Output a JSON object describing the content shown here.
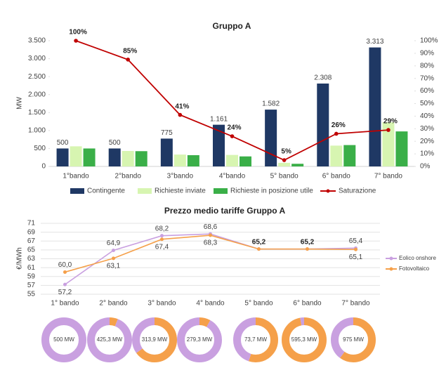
{
  "chart_data": [
    {
      "type": "bar",
      "title": "Gruppo A",
      "ylabel": "MW",
      "categories": [
        "1°bando",
        "2°bando",
        "3°bando",
        "4°bando",
        "5° bando",
        "6° bando",
        "7° bando"
      ],
      "series": [
        {
          "name": "Contingente",
          "color": "#1f3864",
          "values": [
            500,
            500,
            775,
            1161,
            1582,
            2308,
            3313
          ],
          "value_labels": [
            "500",
            "500",
            "775",
            "1.161",
            "1.582",
            "2.308",
            "3.313"
          ]
        },
        {
          "name": "Richieste inviate",
          "color": "#d7f5b1",
          "values": [
            560,
            430,
            330,
            320,
            100,
            580,
            1230
          ]
        },
        {
          "name": "Richieste in posizione utile",
          "color": "#3aaf48",
          "values": [
            500,
            425,
            314,
            279,
            74,
            595,
            975
          ]
        },
        {
          "name": "Saturazione",
          "color": "#c00000",
          "type": "line",
          "axis": "y2",
          "values": [
            100,
            85,
            41,
            24,
            5,
            26,
            29
          ],
          "value_labels": [
            "100%",
            "85%",
            "41%",
            "24%",
            "5%",
            "26%",
            "29%"
          ]
        }
      ],
      "ylim": [
        0,
        3500
      ],
      "yticks": [
        0,
        500,
        {
          "value": 1000,
          "label": "1.000"
        },
        {
          "value": 1500,
          "label": "1.500"
        },
        {
          "value": 2000,
          "label": "2.000"
        },
        {
          "value": 2500,
          "label": "2.500"
        },
        {
          "value": 3000,
          "label": "3.000"
        },
        {
          "value": 3500,
          "label": "3.500"
        }
      ],
      "y2lim": [
        0,
        100
      ],
      "y2ticks": [
        {
          "value": 0,
          "label": "0%"
        },
        {
          "value": 10,
          "label": "10%"
        },
        {
          "value": 20,
          "label": "20%"
        },
        {
          "value": 30,
          "label": "30%"
        },
        {
          "value": 40,
          "label": "40%"
        },
        {
          "value": 50,
          "label": "50%"
        },
        {
          "value": 60,
          "label": "60%"
        },
        {
          "value": 70,
          "label": "70%"
        },
        {
          "value": 80,
          "label": "80%"
        },
        {
          "value": 90,
          "label": "90%"
        },
        {
          "value": 100,
          "label": "100%"
        }
      ],
      "grid": false,
      "legend": "bottom"
    },
    {
      "type": "line",
      "title": "Prezzo medio tariffe Gruppo A",
      "ylabel": "€/MWh",
      "categories": [
        "1° bando",
        "2° bando",
        "3° bando",
        "4° bando",
        "5° bando",
        "6° bando",
        "7° bando"
      ],
      "series": [
        {
          "name": "Eolico onshore",
          "color": "#c9a0e0",
          "values": [
            57.2,
            64.9,
            68.2,
            68.6,
            65.2,
            65.2,
            65.4
          ],
          "value_labels": [
            "57,2",
            "64,9",
            "68,2",
            "68,6",
            "65,2",
            "65,2",
            "65,4"
          ]
        },
        {
          "name": "Fotovoltaico",
          "color": "#f5a04a",
          "values": [
            60.0,
            63.1,
            67.4,
            68.3,
            65.2,
            65.2,
            65.1
          ],
          "value_labels": [
            "60,0",
            "63,1",
            "67,4",
            "68,3",
            null,
            null,
            "65,1"
          ]
        }
      ],
      "ylim": [
        55,
        71
      ],
      "yticks": [
        55,
        57,
        59,
        61,
        63,
        65,
        67,
        69,
        71
      ],
      "grid": true,
      "legend": "right"
    },
    {
      "type": "pie",
      "center_label": "500 MW",
      "values": [
        0,
        100
      ],
      "colors": [
        "#f5a04a",
        "#c9a0e0"
      ]
    },
    {
      "type": "pie",
      "center_label": "425,3 MW",
      "values": [
        6,
        94
      ],
      "colors": [
        "#f5a04a",
        "#c9a0e0"
      ]
    },
    {
      "type": "pie",
      "center_label": "313,9 MW",
      "values": [
        65,
        35
      ],
      "colors": [
        "#f5a04a",
        "#c9a0e0"
      ]
    },
    {
      "type": "pie",
      "center_label": "279,3 MW",
      "values": [
        8,
        92
      ],
      "colors": [
        "#f5a04a",
        "#c9a0e0"
      ]
    },
    {
      "type": "pie",
      "center_label": "73,7 MW",
      "values": [
        55,
        45
      ],
      "colors": [
        "#f5a04a",
        "#c9a0e0"
      ]
    },
    {
      "type": "pie",
      "center_label": "595,3 MW",
      "values": [
        97,
        3
      ],
      "colors": [
        "#f5a04a",
        "#c9a0e0"
      ]
    },
    {
      "type": "pie",
      "center_label": "975 MW",
      "values": [
        60,
        40
      ],
      "colors": [
        "#f5a04a",
        "#c9a0e0"
      ]
    }
  ]
}
